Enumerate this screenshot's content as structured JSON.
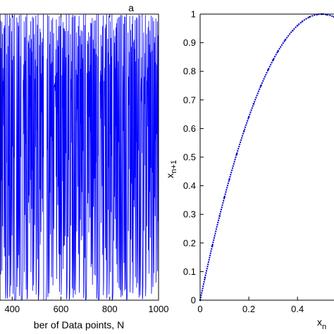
{
  "chart_data": [
    {
      "type": "line",
      "panel_label": "a",
      "title": "",
      "xlabel": "ber of Data points, N",
      "ylabel": "",
      "xlim": [
        350,
        1000
      ],
      "ylim": [
        0,
        1
      ],
      "xticks": [
        "400",
        "600",
        "800",
        "1000"
      ],
      "series": [
        {
          "color": "#0000ff",
          "description": "chaotic logistic map time series oscillating between ~0 and ~1",
          "x_start": 350,
          "x_end": 1000,
          "y_range": [
            0,
            1
          ]
        }
      ]
    },
    {
      "type": "scatter",
      "title": "",
      "xlabel": "x",
      "xlabel_subscript": "n",
      "ylabel": "x",
      "ylabel_subscript": "n+1",
      "xlim": [
        0,
        0.55
      ],
      "ylim": [
        0,
        1
      ],
      "xticks": [
        "0",
        "0.2",
        "0.4"
      ],
      "yticks": [
        "0",
        "0.1",
        "0.2",
        "0.3",
        "0.4",
        "0.5",
        "0.6",
        "0.7",
        "0.8",
        "0.9",
        "1"
      ],
      "series": [
        {
          "color": "#0000cc",
          "function": "x_{n+1} = 4 x_n (1 - x_n)",
          "x": [
            0,
            0.02,
            0.05,
            0.08,
            0.1,
            0.12,
            0.15,
            0.18,
            0.2,
            0.22,
            0.25,
            0.28,
            0.3,
            0.32,
            0.35,
            0.38,
            0.4,
            0.42,
            0.45,
            0.48,
            0.5,
            0.52,
            0.55
          ],
          "y": [
            0,
            0.0784,
            0.19,
            0.2944,
            0.36,
            0.4224,
            0.51,
            0.5904,
            0.64,
            0.6864,
            0.75,
            0.8064,
            0.84,
            0.8704,
            0.91,
            0.9424,
            0.96,
            0.9744,
            0.99,
            0.9984,
            1,
            0.9984,
            0.99
          ]
        }
      ]
    }
  ],
  "colors": {
    "line": "#0000ff",
    "points": "#0000cc",
    "axis": "#000000"
  }
}
